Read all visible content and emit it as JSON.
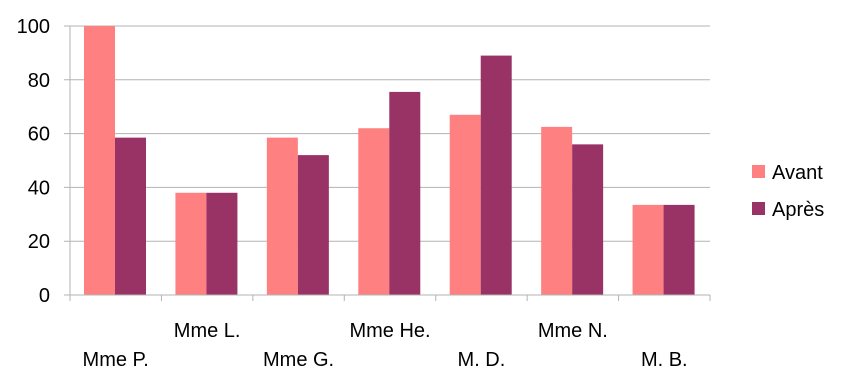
{
  "chart_data": {
    "type": "bar",
    "categories": [
      "Mme P.",
      "Mme L.",
      "Mme G.",
      "Mme He.",
      "M. D.",
      "Mme N.",
      "M. B."
    ],
    "series": [
      {
        "name": "Avant",
        "color": "#ff8080",
        "values": [
          100,
          38,
          58.5,
          62,
          67,
          62.5,
          33.5
        ]
      },
      {
        "name": "Après",
        "color": "#993366",
        "values": [
          58.5,
          38,
          52,
          75.5,
          89,
          56,
          33.5
        ]
      }
    ],
    "ylim": [
      0,
      100
    ],
    "yticks": [
      "0",
      "20",
      "40",
      "60",
      "80",
      "100"
    ],
    "grid": true,
    "legend_position": "right",
    "title": "",
    "xlabel": "",
    "ylabel": ""
  }
}
